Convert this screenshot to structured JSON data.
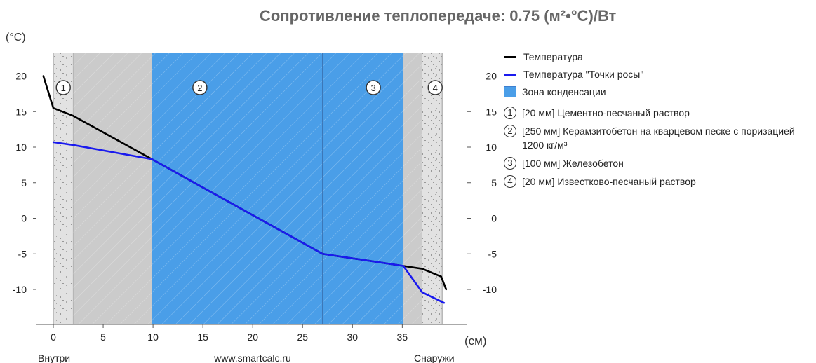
{
  "chart_data": {
    "type": "line",
    "title": "Сопротивление теплопередаче: 0.75 (м²•°C)/Вт",
    "ylabel": "(°C)",
    "xlabel": "(см)",
    "inside_label": "Внутри",
    "outside_label": "Снаружи",
    "site_label": "www.smartcalc.ru",
    "ylim": [
      -15,
      23
    ],
    "xlim": [
      -1.2,
      39.4
    ],
    "x_ticks": [
      0,
      5,
      10,
      15,
      20,
      25,
      30,
      35
    ],
    "y_ticks": [
      20,
      15,
      10,
      5,
      0,
      -5,
      -10
    ],
    "layers": [
      {
        "num": "1",
        "x0": 0,
        "x1": 2,
        "thickness": "[20 мм]",
        "material": "Цементно-песчаный раствор",
        "color": "#e2e2e2"
      },
      {
        "num": "2",
        "x0": 2,
        "x1": 27,
        "thickness": "[250 мм]",
        "material": "Керамзитобетон на кварцевом песке с поризацией 1200 кг/м³",
        "color": "#cbcbcb"
      },
      {
        "num": "3",
        "x0": 27,
        "x1": 37,
        "thickness": "[100 мм]",
        "material": "Железобетон",
        "color": "#cbcbcb"
      },
      {
        "num": "4",
        "x0": 37,
        "x1": 39,
        "thickness": "[20 мм]",
        "material": "Известково-песчаный раствор",
        "color": "#e2e2e2"
      }
    ],
    "condensation_zone": {
      "x0": 9.9,
      "x1": 35.1,
      "color": "#4a9ee8"
    },
    "series": [
      {
        "name": "Температура",
        "color": "#000000",
        "x": [
          -1.0,
          0,
          2,
          9.9,
          27,
          35.1,
          37,
          38.9,
          39.4
        ],
        "y": [
          20,
          15.5,
          14.4,
          8.3,
          -5.0,
          -6.7,
          -7.1,
          -8.2,
          -10
        ]
      },
      {
        "name": "Температура \"Точки росы\"",
        "color": "#1a1aee",
        "x": [
          0,
          2,
          9.9,
          27,
          35.1,
          37,
          39.2
        ],
        "y": [
          10.7,
          10.3,
          8.3,
          -5.0,
          -6.7,
          -10.4,
          -11.9
        ]
      }
    ],
    "legend": {
      "temp": "Температура",
      "dew": "Температура \"Точки росы\"",
      "zone": "Зона конденсации"
    }
  }
}
